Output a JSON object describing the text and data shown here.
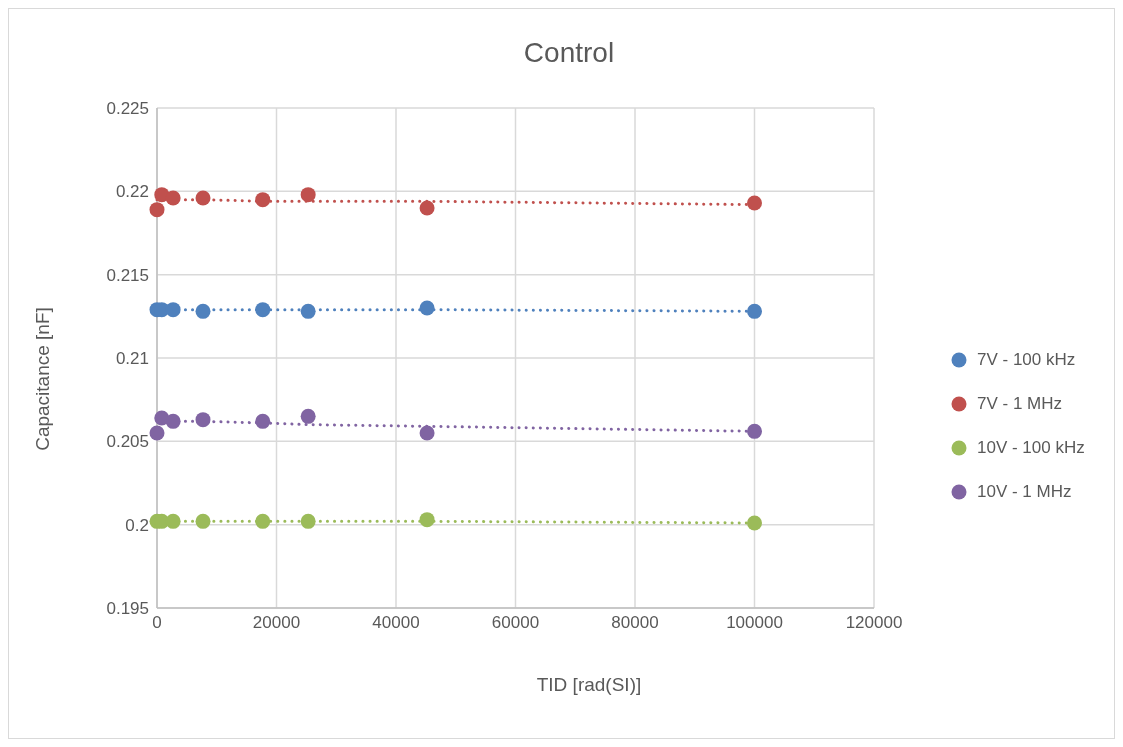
{
  "chart_data": {
    "type": "scatter",
    "title": "Control",
    "xlabel": "TID [rad(SI)]",
    "ylabel": "Capacitance [nF]",
    "x": [
      0,
      800,
      2700,
      7700,
      17700,
      25300,
      45200,
      100000
    ],
    "series": [
      {
        "name": "7V - 100 kHz",
        "color": "#4f81bd",
        "values": [
          0.2129,
          0.2129,
          0.2129,
          0.2128,
          0.2129,
          0.2128,
          0.213,
          0.2128
        ]
      },
      {
        "name": "7V - 1 MHz",
        "color": "#c0504d",
        "values": [
          0.2189,
          0.2198,
          0.2196,
          0.2196,
          0.2195,
          0.2198,
          0.219,
          0.2193
        ]
      },
      {
        "name": "10V - 100 kHz",
        "color": "#9bbb59",
        "values": [
          0.2002,
          0.2002,
          0.2002,
          0.2002,
          0.2002,
          0.2002,
          0.2003,
          0.2001
        ]
      },
      {
        "name": "10V - 1 MHz",
        "color": "#8064a2",
        "values": [
          0.2055,
          0.2064,
          0.2062,
          0.2063,
          0.2062,
          0.2065,
          0.2055,
          0.2056
        ]
      },
      {
        "type": "line",
        "color": "#4f81bd",
        "values": [
          0.2129,
          0.2129,
          0.2129,
          0.2129,
          0.2129,
          0.2129,
          0.2129,
          0.2128
        ],
        "line_style": "dotted",
        "marker": "none"
      },
      {
        "type": "line",
        "color": "#c0504d",
        "values": [
          0.2195,
          0.2195,
          0.2195,
          0.2195,
          0.2194,
          0.2194,
          0.2194,
          0.2192
        ],
        "line_style": "dotted",
        "marker": "none"
      },
      {
        "type": "line",
        "color": "#9bbb59",
        "values": [
          0.2002,
          0.2002,
          0.2002,
          0.2002,
          0.2002,
          0.2002,
          0.2002,
          0.2001
        ],
        "line_style": "dotted",
        "marker": "none"
      },
      {
        "type": "line",
        "color": "#8064a2",
        "values": [
          0.2062,
          0.2062,
          0.2062,
          0.2062,
          0.2061,
          0.206,
          0.2059,
          0.2056
        ],
        "line_style": "dotted",
        "marker": "none"
      }
    ],
    "xlim": [
      0,
      120000
    ],
    "xticks": [
      0,
      20000,
      40000,
      60000,
      80000,
      100000,
      120000
    ],
    "ylim": [
      0.195,
      0.225
    ],
    "yticks": [
      0.195,
      0.2,
      0.205,
      0.21,
      0.215,
      0.22,
      0.225
    ],
    "grid": true,
    "legend": "right",
    "marker": "circle"
  }
}
